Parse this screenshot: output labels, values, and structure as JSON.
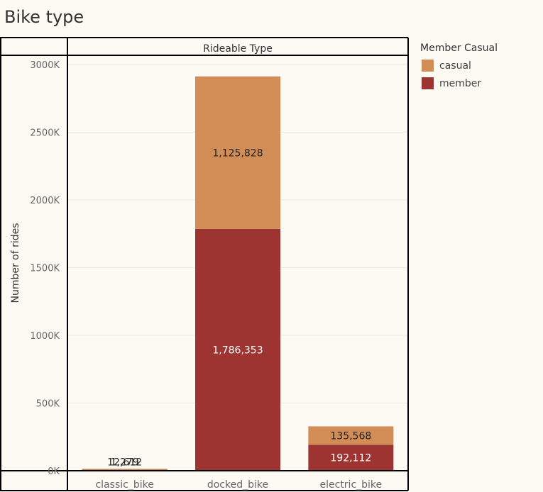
{
  "page": {
    "title": "Bike type"
  },
  "colors": {
    "casual": "#d28d56",
    "member": "#9e3432",
    "background": "#fdf9f3",
    "grid": "#eeeae2"
  },
  "legend": {
    "title": "Member Casual",
    "items": [
      {
        "label": "casual",
        "color": "#d28d56"
      },
      {
        "label": "member",
        "color": "#9e3432"
      }
    ]
  },
  "chart_data": {
    "type": "bar",
    "stacked": true,
    "title": "Bike type",
    "column_header": "Rideable Type",
    "ylabel": "Number of rides",
    "xlabel": "",
    "ylim": [
      0,
      3000000
    ],
    "yticks": [
      0,
      500000,
      1000000,
      1500000,
      2000000,
      2500000,
      3000000
    ],
    "ytick_labels": [
      "0K",
      "500K",
      "1000K",
      "1500K",
      "2000K",
      "2500K",
      "3000K"
    ],
    "categories": [
      "classic_bike",
      "docked_bike",
      "electric_bike"
    ],
    "series": [
      {
        "name": "member",
        "values": [
          12612,
          1786353,
          192112
        ],
        "labels": [
          "12,612",
          "1,786,353",
          "192,112"
        ],
        "color": "#9e3432"
      },
      {
        "name": "casual",
        "values": [
          1279,
          1125828,
          135568
        ],
        "labels": [
          "1,279",
          "1,125,828",
          "135,568"
        ],
        "color": "#d28d56"
      }
    ],
    "grid": true,
    "legend_position": "right"
  }
}
